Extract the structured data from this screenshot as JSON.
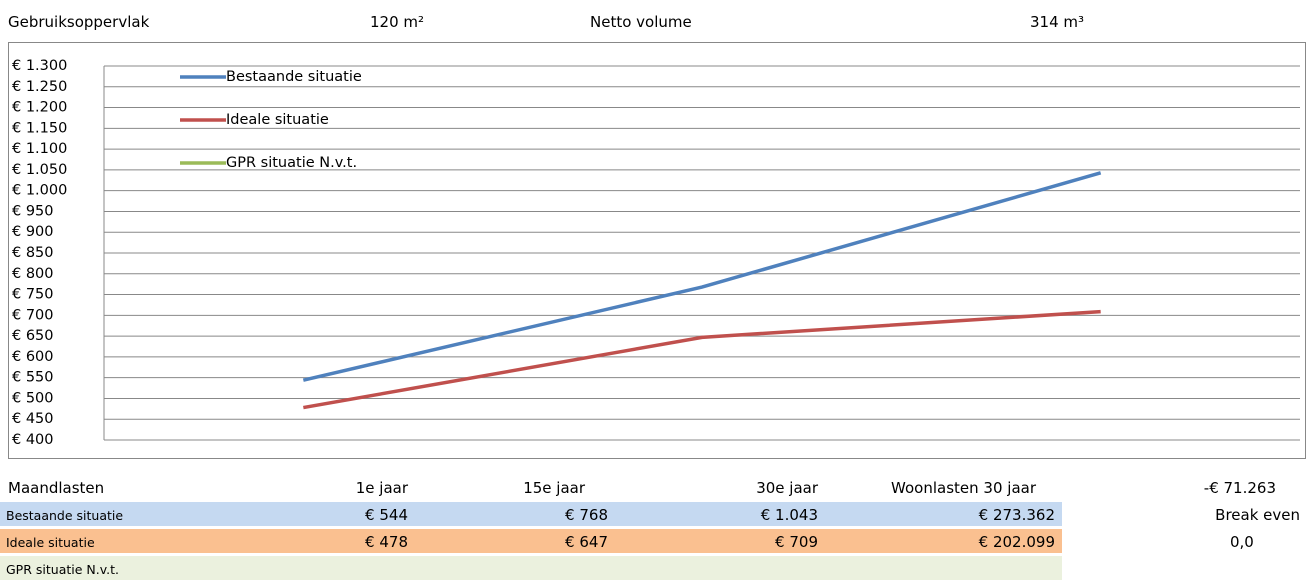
{
  "header": {
    "area_label": "Gebruiksoppervlak",
    "area_value": "120 m²",
    "volume_label": "Netto volume",
    "volume_value": "314 m³"
  },
  "chart_data": {
    "type": "line",
    "categories": [
      "1e jaar",
      "15e jaar",
      "30e jaar"
    ],
    "series": [
      {
        "name": "Bestaande situatie",
        "color": "#4f81bd",
        "values": [
          544,
          768,
          1043
        ]
      },
      {
        "name": "Ideale situatie",
        "color": "#c0504d",
        "values": [
          478,
          647,
          709
        ]
      },
      {
        "name": "GPR situatie N.v.t.",
        "color": "#9bbb59",
        "values": [
          null,
          null,
          null
        ]
      }
    ],
    "ylim": [
      400,
      1300
    ],
    "yticks": [
      {
        "value": 400,
        "label": "€ 400"
      },
      {
        "value": 450,
        "label": "€ 450"
      },
      {
        "value": 500,
        "label": "€ 500"
      },
      {
        "value": 550,
        "label": "€ 550"
      },
      {
        "value": 600,
        "label": "€ 600"
      },
      {
        "value": 650,
        "label": "€ 650"
      },
      {
        "value": 700,
        "label": "€ 700"
      },
      {
        "value": 750,
        "label": "€ 750"
      },
      {
        "value": 800,
        "label": "€ 800"
      },
      {
        "value": 850,
        "label": "€ 850"
      },
      {
        "value": 900,
        "label": "€ 900"
      },
      {
        "value": 950,
        "label": "€ 950"
      },
      {
        "value": 1000,
        "label": "€ 1.000"
      },
      {
        "value": 1050,
        "label": "€ 1.050"
      },
      {
        "value": 1100,
        "label": "€ 1.100"
      },
      {
        "value": 1150,
        "label": "€ 1.150"
      },
      {
        "value": 1200,
        "label": "€ 1.200"
      },
      {
        "value": 1250,
        "label": "€ 1.250"
      },
      {
        "value": 1300,
        "label": "€ 1.300"
      }
    ],
    "grid": true,
    "legend": "upper left"
  },
  "table": {
    "header": [
      "Maandlasten",
      "1e jaar",
      "15e jaar",
      "30e jaar",
      "Woonlasten 30 jaar"
    ],
    "rows": [
      [
        "Bestaande situatie",
        "€ 544",
        "€ 768",
        "€ 1.043",
        "€ 273.362"
      ],
      [
        "Ideale situatie",
        "€ 478",
        "€ 647",
        "€ 709",
        "€ 202.099"
      ],
      [
        "GPR situatie N.v.t."
      ]
    ]
  },
  "break_even": {
    "amount": "-€ 71.263",
    "label": "Break even",
    "value": "0,0"
  }
}
